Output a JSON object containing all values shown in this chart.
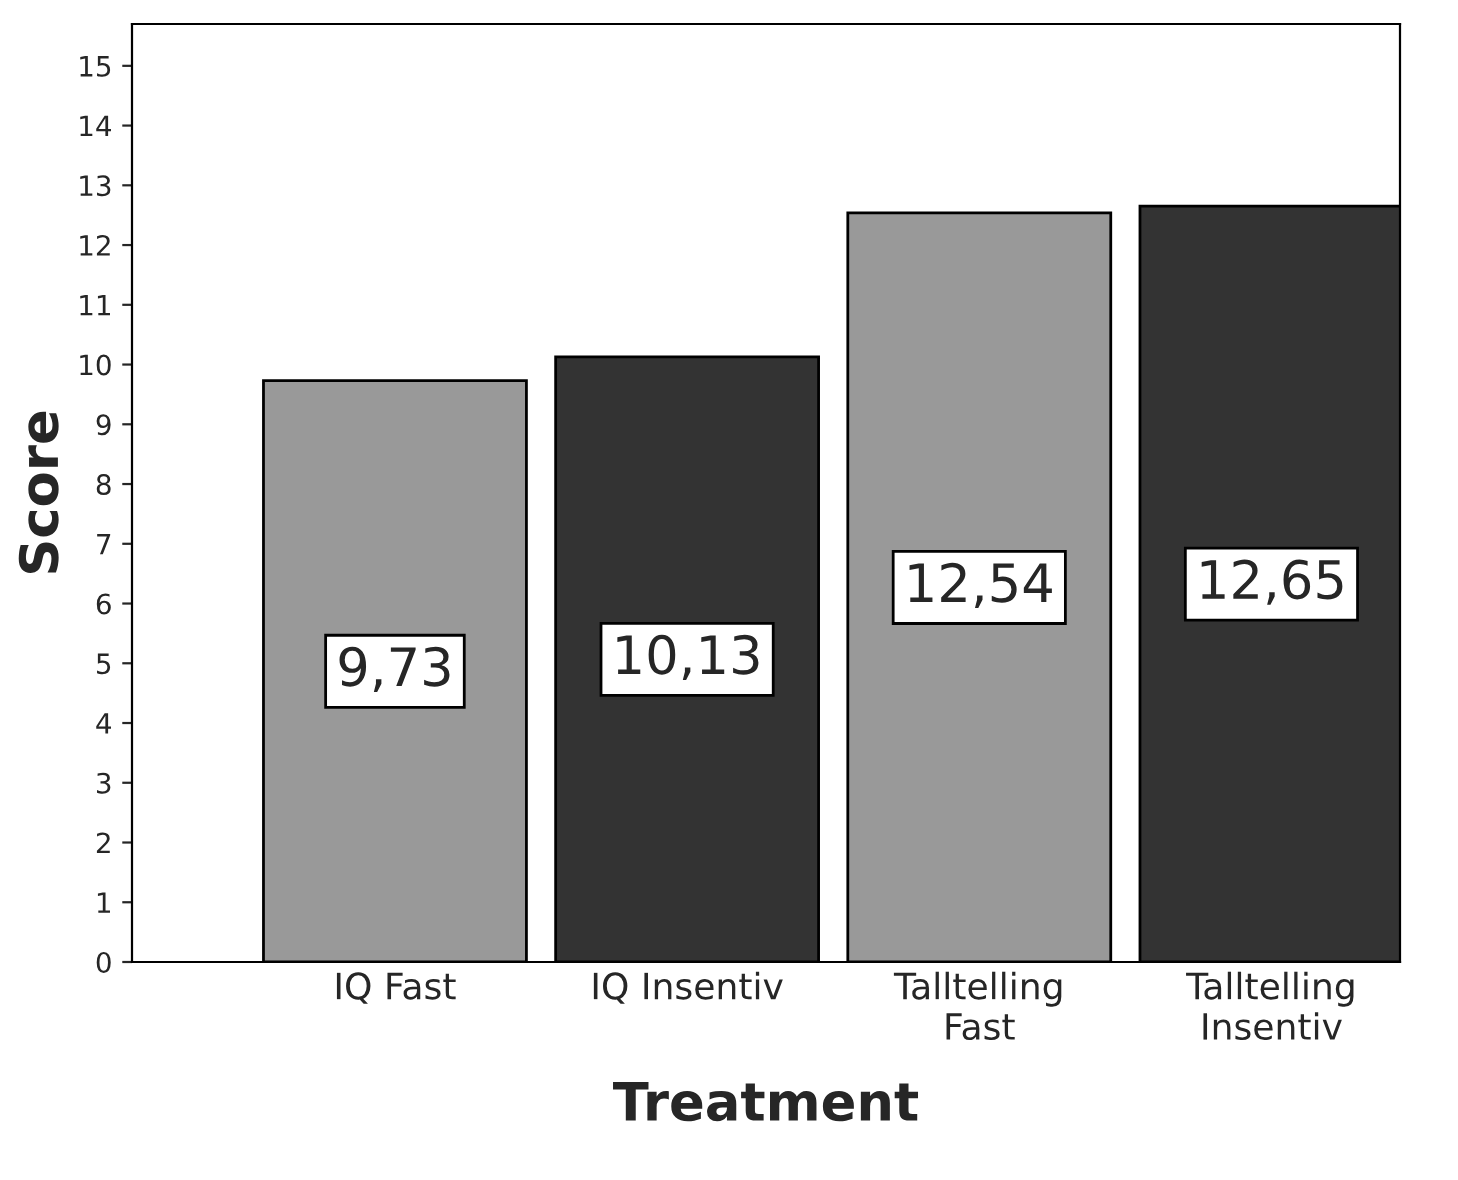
{
  "chart_data": {
    "type": "bar",
    "xlabel": "Treatment",
    "ylabel": "Score",
    "categories": [
      "IQ Fast",
      "IQ Insentiv",
      "Talltelling\nFast",
      "Talltelling\nInsentiv"
    ],
    "values": [
      9.73,
      10.13,
      12.54,
      12.65
    ],
    "colors": [
      "#999999",
      "#333333",
      "#999999",
      "#333333"
    ],
    "value_labels": [
      "9,73",
      "10,13",
      "12,54",
      "12,65"
    ],
    "ylim": [
      0,
      15.7
    ],
    "yticks": [
      0,
      1,
      2,
      3,
      4,
      5,
      6,
      7,
      8,
      9,
      10,
      11,
      12,
      13,
      14,
      15
    ],
    "grid": false,
    "legend": false
  }
}
